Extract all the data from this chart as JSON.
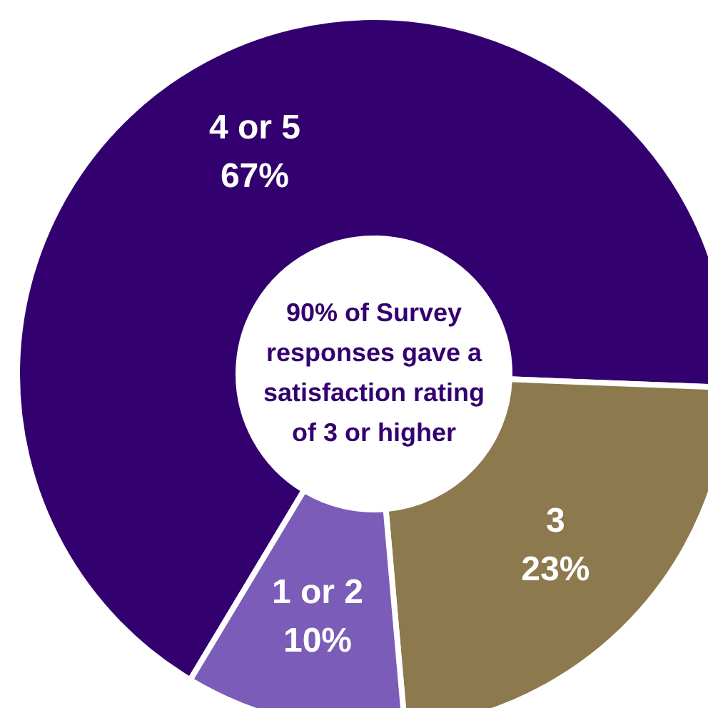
{
  "chart_data": {
    "type": "donut",
    "categories": [
      "4 or 5",
      "3",
      "1 or 2"
    ],
    "values": [
      67,
      23,
      10
    ],
    "colors": [
      "#33006f",
      "#8c7a4e",
      "#7b5cb8"
    ],
    "value_labels": [
      "67%",
      "23%",
      "10%"
    ],
    "annotations": [
      "90% of Survey responses gave a satisfaction rating of 3 or higher"
    ],
    "legend": false
  }
}
